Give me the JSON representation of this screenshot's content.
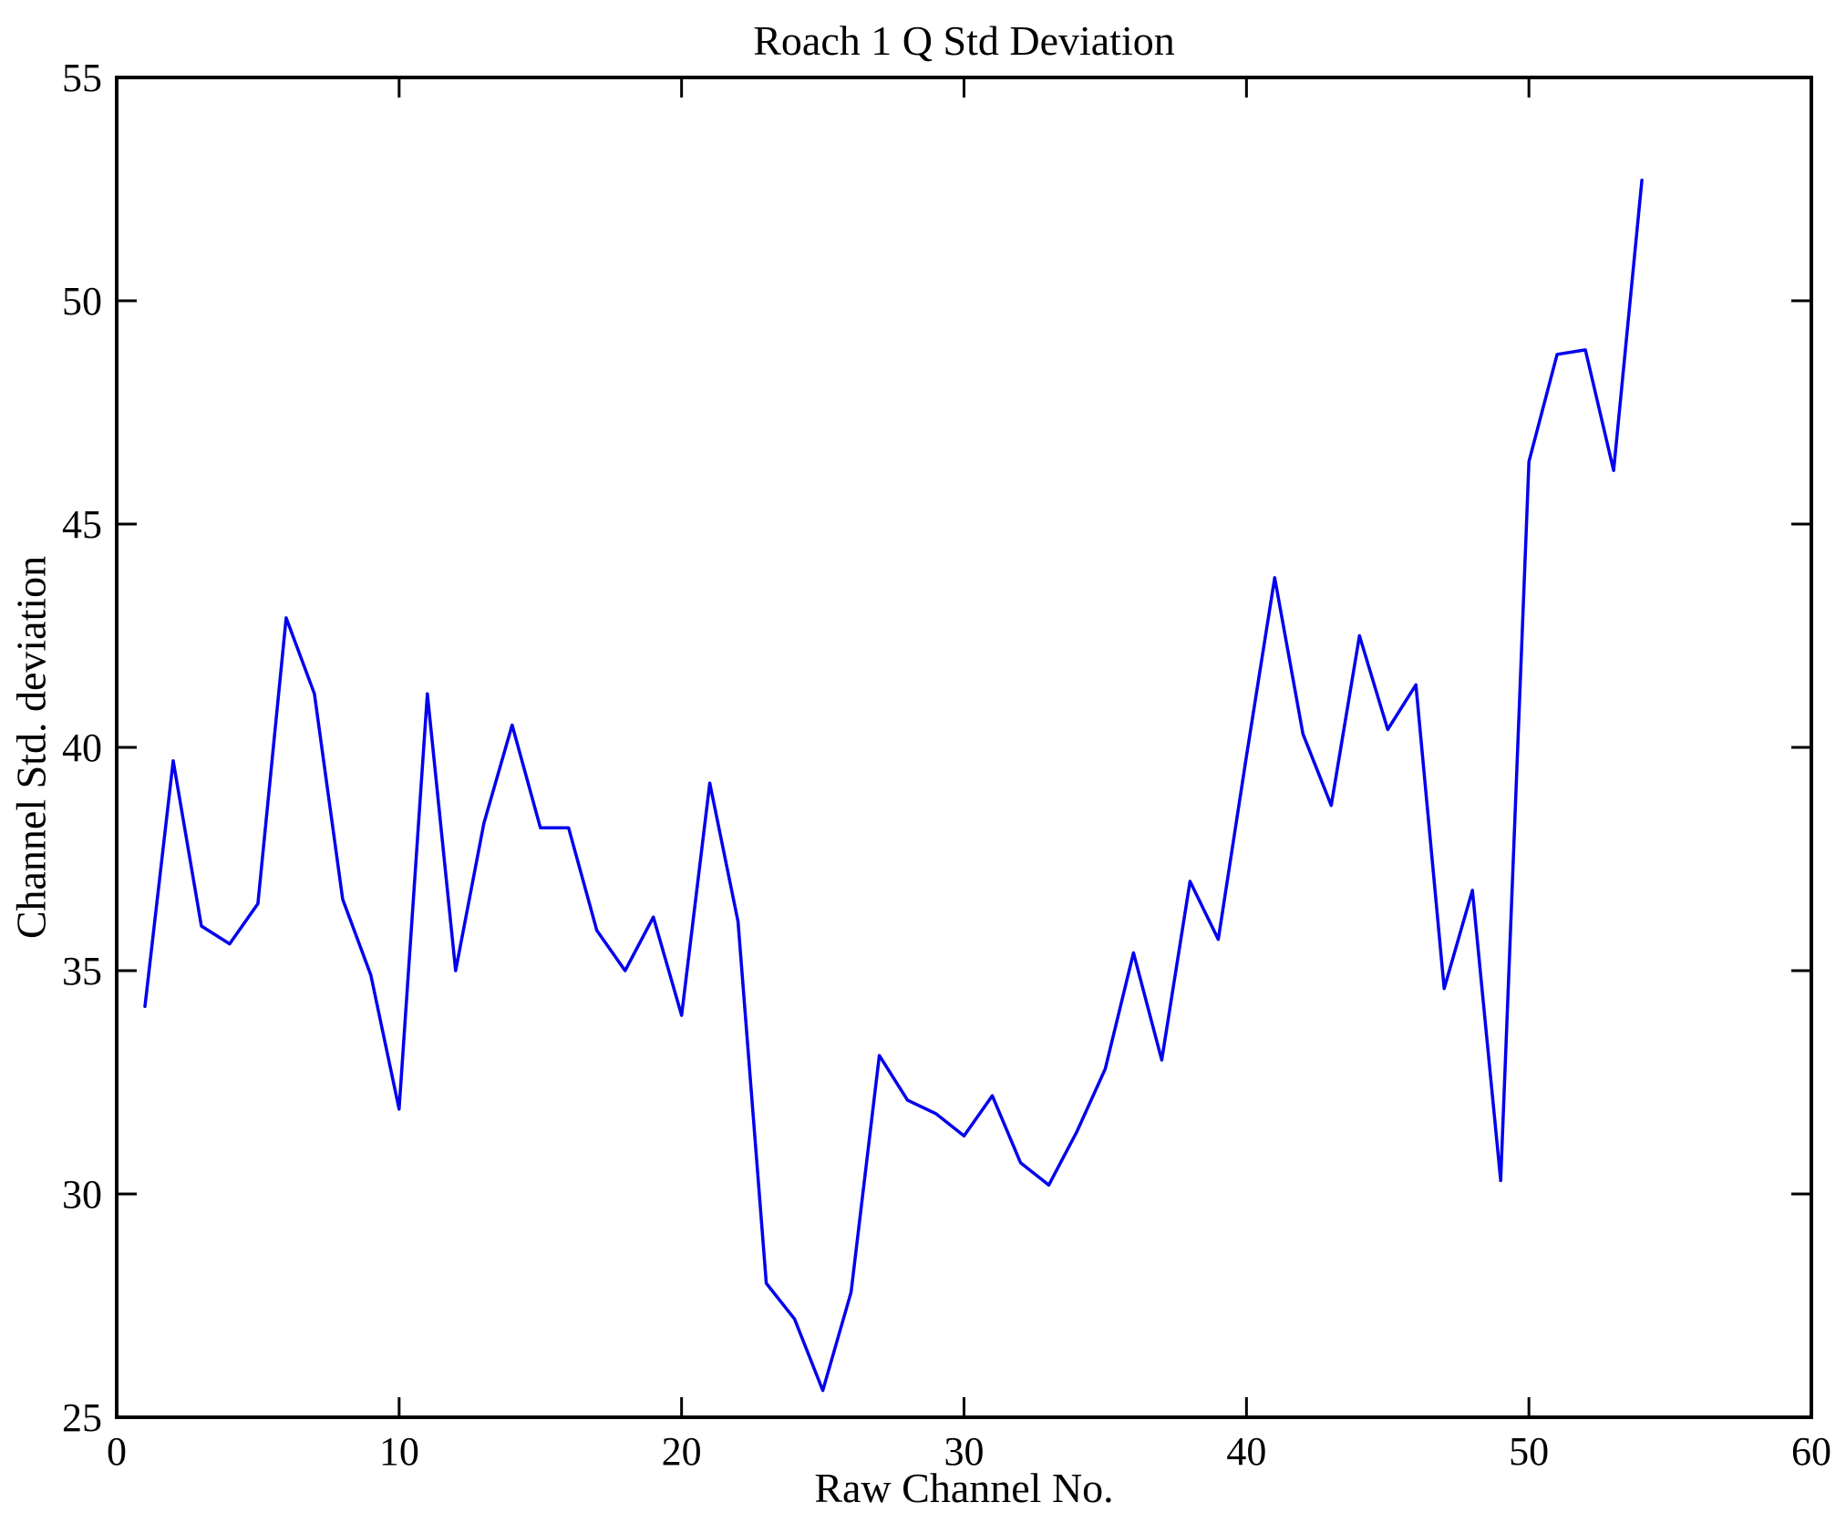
{
  "figure": {
    "background": "#ffffff",
    "frame_color": "#000000"
  },
  "chart_data": {
    "type": "line",
    "title": "Roach 1 Q Std Deviation",
    "xlabel": "Raw Channel No.",
    "ylabel": "Channel Std. deviation",
    "xlim": [
      0,
      60
    ],
    "ylim": [
      25,
      55
    ],
    "x_ticks": [
      0,
      10,
      20,
      30,
      40,
      50,
      60
    ],
    "y_ticks": [
      25,
      30,
      35,
      40,
      45,
      50,
      55
    ],
    "grid": false,
    "legend": null,
    "line_color": "#0000EE",
    "series_name": "channel-std-deviation",
    "x": [
      1,
      2,
      3,
      4,
      5,
      6,
      7,
      8,
      9,
      10,
      11,
      12,
      13,
      14,
      15,
      16,
      17,
      18,
      19,
      20,
      21,
      22,
      23,
      24,
      25,
      26,
      27,
      28,
      29,
      30,
      31,
      32,
      33,
      34,
      35,
      36,
      37,
      38,
      39,
      40,
      41,
      42,
      43,
      44,
      45,
      46,
      47,
      48,
      49,
      50,
      51,
      52,
      53,
      54
    ],
    "values": [
      34.2,
      39.7,
      36.0,
      35.6,
      36.5,
      42.9,
      41.2,
      36.6,
      34.9,
      31.9,
      41.2,
      35.0,
      38.3,
      40.5,
      38.2,
      38.2,
      35.9,
      35.0,
      36.2,
      34.0,
      39.2,
      36.1,
      28.0,
      27.2,
      25.6,
      27.8,
      33.1,
      32.1,
      31.8,
      31.3,
      32.2,
      30.7,
      30.2,
      31.4,
      32.8,
      35.4,
      33.0,
      37.0,
      35.7,
      39.8,
      43.8,
      40.3,
      38.7,
      42.5,
      40.4,
      41.4,
      34.6,
      36.8,
      30.3,
      46.4,
      48.8,
      48.9,
      46.2,
      52.7
    ]
  }
}
